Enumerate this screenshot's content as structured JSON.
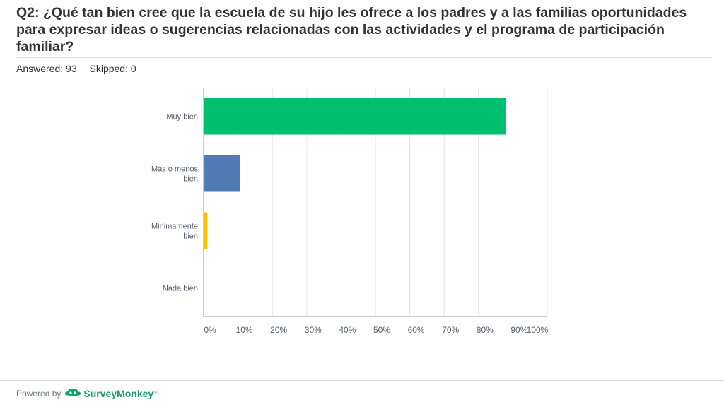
{
  "title": "Q2: ¿Qué tan bien cree que la escuela de su hijo les ofrece a los padres y a las familias oportunidades para expresar ideas o sugerencias relacionadas con las actividades y el programa de participación familiar?",
  "answered": "Answered: 93",
  "skipped": "Skipped: 0",
  "footer": {
    "powered_by": "Powered by",
    "brand": "SurveyMonkey",
    "brand_color": "#1a9e6f"
  },
  "chart_data": {
    "type": "bar",
    "orientation": "horizontal",
    "categories": [
      [
        "Muy bien"
      ],
      [
        "Más o menos",
        "bien"
      ],
      [
        "Minimamente",
        "bien"
      ],
      [
        "Nada bien"
      ]
    ],
    "values": [
      87.9,
      10.6,
      1.1,
      0
    ],
    "colors": [
      "#00bf6f",
      "#507cb6",
      "#f9be00",
      "#6bc8cd"
    ],
    "xlim": [
      0,
      100
    ],
    "xticks": [
      "0%",
      "10%",
      "20%",
      "30%",
      "40%",
      "50%",
      "60%",
      "70%",
      "80%",
      "90%",
      "100%"
    ],
    "grid": true
  }
}
